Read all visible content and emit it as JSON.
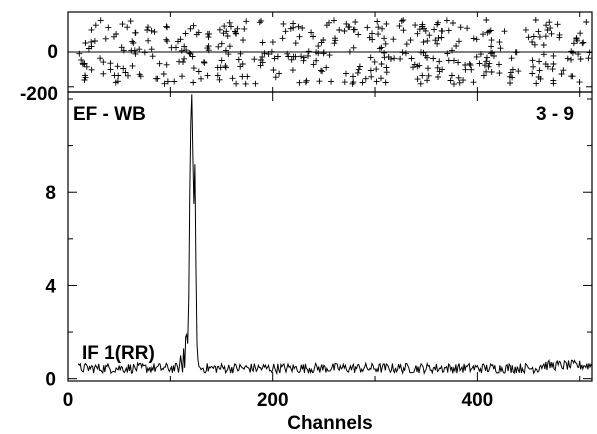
{
  "chart_data": [
    {
      "panel": "residuals",
      "type": "scatter",
      "marker": "plus",
      "x_range": [
        0,
        512
      ],
      "ylim": [
        -230,
        230
      ],
      "y_ticks": [
        {
          "value": 0,
          "label": "0"
        },
        {
          "value": -200,
          "label": "-200"
        }
      ],
      "zero_line": true,
      "point_count": 420,
      "y_spread": [
        -185,
        185
      ],
      "note": "residual points randomly scattered across the channel range"
    },
    {
      "panel": "spectrum",
      "type": "line",
      "annotations": {
        "top_left": "EF - WB",
        "top_right": "3 - 9",
        "bottom_left": "IF 1(RR)"
      },
      "xlabel": "Channels",
      "x_range": [
        0,
        512
      ],
      "ylim": [
        -0.1,
        12.3
      ],
      "x_ticks": [
        {
          "value": 0,
          "label": "0"
        },
        {
          "value": 200,
          "label": "200"
        },
        {
          "value": 400,
          "label": "400"
        }
      ],
      "y_ticks": [
        {
          "value": 0,
          "label": "0"
        },
        {
          "value": 4,
          "label": "4"
        },
        {
          "value": 8,
          "label": "8"
        }
      ],
      "x_minor_step": 100,
      "y_minor_step": 2,
      "baseline": 0.45,
      "noise_amplitude": 0.22,
      "channel_start": 10,
      "channel_end": 512,
      "features": [
        {
          "x": 110,
          "y": 1.0
        },
        {
          "x": 113,
          "y": 1.3
        },
        {
          "x": 115,
          "y": 1.8
        },
        {
          "x": 116,
          "y": 1.9
        },
        {
          "x": 117,
          "y": 1.5
        },
        {
          "x": 118,
          "y": 3.5
        },
        {
          "x": 119,
          "y": 8.0
        },
        {
          "x": 120,
          "y": 11.0
        },
        {
          "x": 121,
          "y": 12.2
        },
        {
          "x": 122,
          "y": 9.5
        },
        {
          "x": 123,
          "y": 7.5
        },
        {
          "x": 124,
          "y": 9.2
        },
        {
          "x": 125,
          "y": 5.0
        },
        {
          "x": 126,
          "y": 1.5
        },
        {
          "x": 127,
          "y": 0.8
        }
      ]
    }
  ]
}
